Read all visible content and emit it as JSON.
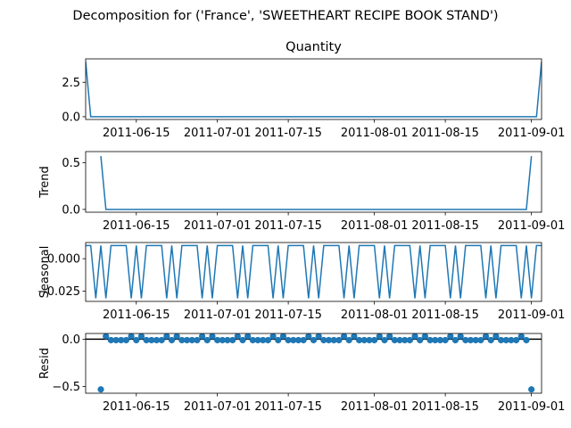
{
  "suptitle": "Decomposition for ('France', 'SWEETHEART RECIPE BOOK STAND')",
  "colors": {
    "line": "#1f77b4",
    "axis": "#000000",
    "zero_line": "#000000"
  },
  "chart_data": [
    {
      "type": "line",
      "title": "Quantity",
      "ylabel": "",
      "x_range": [
        "2011-06-05",
        "2011-09-03"
      ],
      "ylim": [
        -0.2,
        4.2
      ],
      "yticks": [
        "0.0",
        "2.5"
      ],
      "xticks": [
        "2011-06-15",
        "2011-07-01",
        "2011-07-15",
        "2011-08-01",
        "2011-08-15",
        "2011-09-01"
      ],
      "series": [
        {
          "x": [
            "2011-06-05",
            "2011-06-06",
            "2011-09-02",
            "2011-09-03"
          ],
          "y": [
            4,
            0,
            0,
            4
          ]
        }
      ]
    },
    {
      "type": "line",
      "title": "",
      "ylabel": "Trend",
      "x_range": [
        "2011-06-05",
        "2011-09-03"
      ],
      "ylim": [
        -0.03,
        0.62
      ],
      "yticks": [
        "0.0",
        "0.5"
      ],
      "xticks": [
        "2011-06-15",
        "2011-07-01",
        "2011-07-15",
        "2011-08-01",
        "2011-08-15",
        "2011-09-01"
      ],
      "series": [
        {
          "x": [
            "2011-06-08",
            "2011-06-09",
            "2011-08-31",
            "2011-09-01"
          ],
          "y": [
            0.571,
            0,
            0,
            0.571
          ]
        }
      ]
    },
    {
      "type": "line",
      "title": "",
      "ylabel": "Seasonal",
      "x_range": [
        "2011-06-05",
        "2011-09-03"
      ],
      "ylim": [
        -0.033,
        0.0125
      ],
      "yticks": [
        "0.000",
        "−0.025"
      ],
      "xticks": [
        "2011-06-15",
        "2011-07-01",
        "2011-07-15",
        "2011-08-01",
        "2011-08-15",
        "2011-09-01"
      ],
      "period_days": 7,
      "weekly_pattern": [
        0.0102,
        0.0102,
        -0.0306,
        0.0102,
        -0.0306,
        0.0102,
        0.0102
      ],
      "series": [
        {
          "x_start": "2011-06-05",
          "x_end": "2011-09-03"
        }
      ]
    },
    {
      "type": "scatter",
      "title": "",
      "ylabel": "Resid",
      "x_range": [
        "2011-06-05",
        "2011-09-03"
      ],
      "ylim": [
        -0.57,
        0.06
      ],
      "yticks": [
        "0.0",
        "−0.5"
      ],
      "xticks": [
        "2011-06-15",
        "2011-07-01",
        "2011-07-15",
        "2011-08-01",
        "2011-08-15",
        "2011-09-01"
      ],
      "zero_line": 0,
      "outliers": [
        {
          "x": "2011-06-08",
          "y": -0.53
        },
        {
          "x": "2011-09-01",
          "y": -0.53
        }
      ],
      "resid_range": [
        "2011-06-09",
        "2011-08-31"
      ],
      "weekly_pattern": [
        -0.0102,
        -0.0102,
        0.0306,
        -0.0102,
        0.0306,
        -0.0102,
        -0.0102
      ]
    }
  ]
}
